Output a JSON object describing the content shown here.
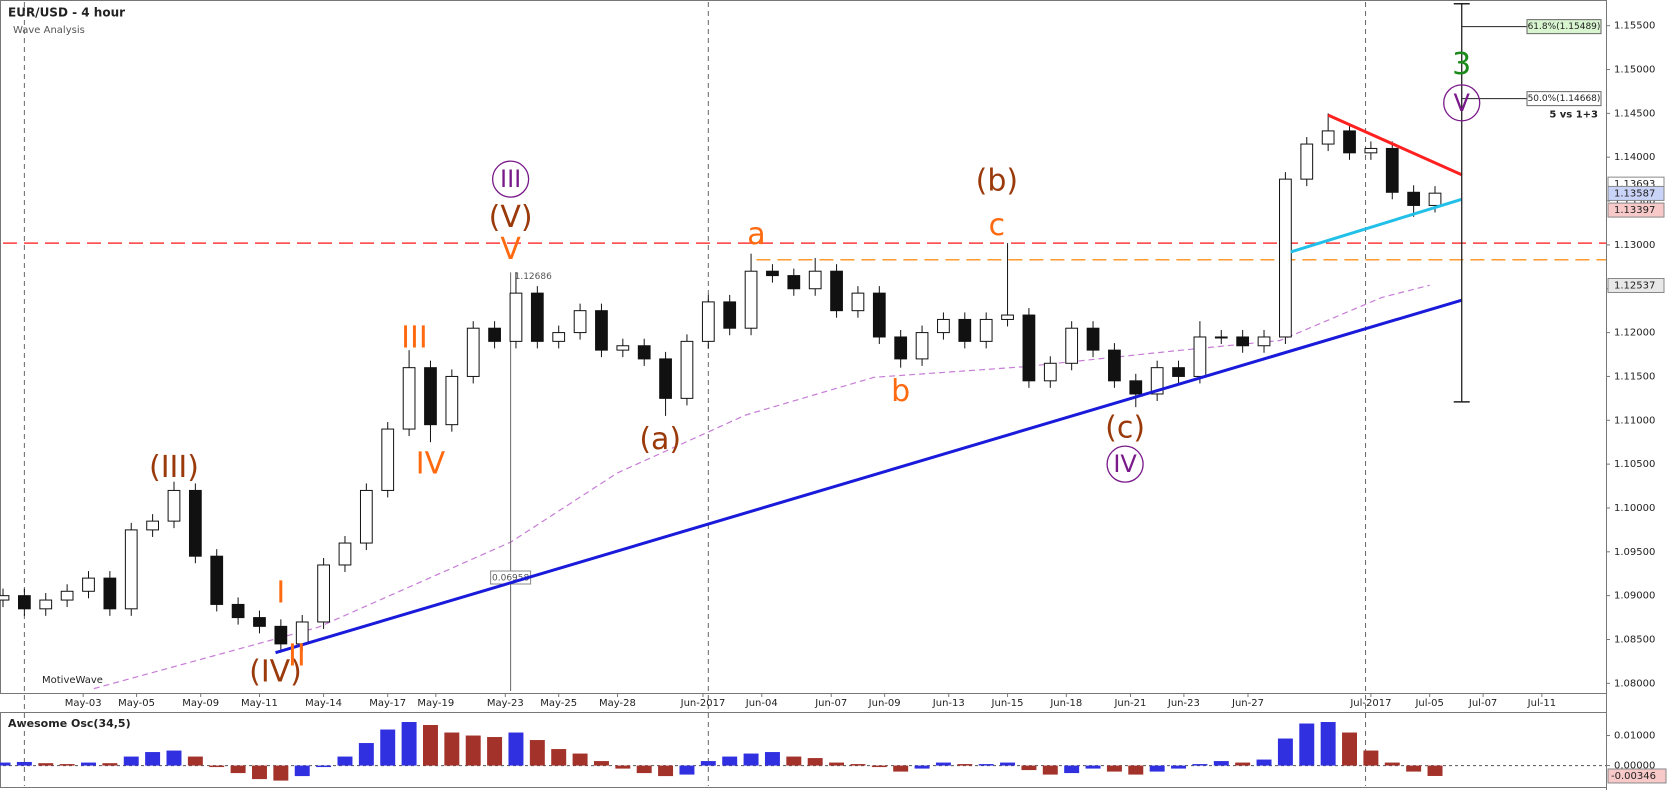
{
  "chart_data": {
    "type": "candlestick",
    "title": "EUR/USD - 4 hour",
    "subtitle": "Wave Analysis",
    "watermark": "MotiveWave",
    "xlim": [
      0,
      300
    ],
    "xticks": [
      {
        "value": 15,
        "label": "May-03"
      },
      {
        "value": 25,
        "label": "May-05"
      },
      {
        "value": 37,
        "label": "May-09"
      },
      {
        "value": 48,
        "label": "May-11"
      },
      {
        "value": 60,
        "label": "May-14"
      },
      {
        "value": 72,
        "label": "May-17"
      },
      {
        "value": 81,
        "label": "May-19"
      },
      {
        "value": 94,
        "label": "May-23"
      },
      {
        "value": 104,
        "label": "May-25"
      },
      {
        "value": 115,
        "label": "May-28"
      },
      {
        "value": 131,
        "label": "Jun-2017"
      },
      {
        "value": 142,
        "label": "Jun-04"
      },
      {
        "value": 155,
        "label": "Jun-07"
      },
      {
        "value": 165,
        "label": "Jun-09"
      },
      {
        "value": 177,
        "label": "Jun-13"
      },
      {
        "value": 188,
        "label": "Jun-15"
      },
      {
        "value": 199,
        "label": "Jun-18"
      },
      {
        "value": 211,
        "label": "Jun-21"
      },
      {
        "value": 221,
        "label": "Jun-23"
      },
      {
        "value": 233,
        "label": "Jun-27"
      },
      {
        "value": 256,
        "label": "Jul-2017"
      },
      {
        "value": 267,
        "label": "Jul-05"
      },
      {
        "value": 277,
        "label": "Jul-07"
      },
      {
        "value": 288,
        "label": "Jul-11"
      }
    ],
    "ylim": [
      1.0789,
      1.1577
    ],
    "yticks": [
      {
        "value": 1.08,
        "label": "1.08000"
      },
      {
        "value": 1.085,
        "label": "1.08500"
      },
      {
        "value": 1.09,
        "label": "1.09000"
      },
      {
        "value": 1.095,
        "label": "1.09500"
      },
      {
        "value": 1.1,
        "label": "1.10000"
      },
      {
        "value": 1.105,
        "label": "1.10500"
      },
      {
        "value": 1.11,
        "label": "1.11000"
      },
      {
        "value": 1.115,
        "label": "1.11500"
      },
      {
        "value": 1.12,
        "label": "1.12000"
      },
      {
        "value": 1.125,
        "label": "1.12500"
      },
      {
        "value": 1.13,
        "label": "1.13000"
      },
      {
        "value": 1.135,
        "label": "1.13500"
      },
      {
        "value": 1.14,
        "label": "1.14000"
      },
      {
        "value": 1.145,
        "label": "1.14500"
      },
      {
        "value": 1.15,
        "label": "1.15000"
      },
      {
        "value": 1.155,
        "label": "1.15500"
      }
    ],
    "x": [
      0,
      4,
      8,
      12,
      16,
      20,
      24,
      28,
      32,
      36,
      40,
      44,
      48,
      52,
      56,
      60,
      64,
      68,
      72,
      76,
      80,
      84,
      88,
      92,
      96,
      100,
      104,
      108,
      112,
      116,
      120,
      124,
      128,
      132,
      136,
      140,
      144,
      148,
      152,
      156,
      160,
      164,
      168,
      172,
      176,
      180,
      184,
      188,
      192,
      196,
      200,
      204,
      208,
      212,
      216,
      220,
      224,
      228,
      232,
      236,
      240,
      244,
      248,
      252,
      256,
      260,
      264,
      268
    ],
    "open": [
      1.0895,
      1.09,
      1.0885,
      1.0895,
      1.0905,
      1.092,
      1.0885,
      1.0975,
      1.0985,
      1.102,
      1.0945,
      1.089,
      1.0875,
      1.0865,
      1.0845,
      1.087,
      1.0935,
      1.096,
      1.102,
      1.109,
      1.116,
      1.1095,
      1.115,
      1.1205,
      1.119,
      1.1245,
      1.119,
      1.12,
      1.1225,
      1.118,
      1.1185,
      1.117,
      1.1125,
      1.119,
      1.1235,
      1.1205,
      1.127,
      1.1265,
      1.125,
      1.127,
      1.1225,
      1.1245,
      1.1195,
      1.117,
      1.12,
      1.1215,
      1.119,
      1.1215,
      1.122,
      1.1145,
      1.1165,
      1.1205,
      1.118,
      1.1145,
      1.113,
      1.116,
      1.115,
      1.1195,
      1.1195,
      1.1185,
      1.1195,
      1.1375,
      1.1415,
      1.143,
      1.1405,
      1.141,
      1.136,
      1.1345
    ],
    "high": [
      1.0908,
      1.0908,
      1.0903,
      1.0913,
      1.0928,
      1.0928,
      1.0983,
      1.0993,
      1.103,
      1.1028,
      1.0953,
      1.0898,
      1.0883,
      1.0873,
      1.0878,
      1.0943,
      1.0968,
      1.1028,
      1.1098,
      1.118,
      1.1168,
      1.1158,
      1.1213,
      1.1213,
      1.1269,
      1.1253,
      1.1208,
      1.1233,
      1.1233,
      1.1193,
      1.1193,
      1.1178,
      1.1198,
      1.1243,
      1.1243,
      1.129,
      1.1278,
      1.1273,
      1.1285,
      1.1278,
      1.1253,
      1.1253,
      1.1203,
      1.1208,
      1.1223,
      1.1223,
      1.1223,
      1.1302,
      1.1228,
      1.1173,
      1.1213,
      1.1213,
      1.1188,
      1.1153,
      1.1168,
      1.1168,
      1.1213,
      1.1203,
      1.1203,
      1.1203,
      1.1383,
      1.1423,
      1.145,
      1.1438,
      1.1418,
      1.1418,
      1.1368,
      1.1367
    ],
    "low": [
      1.0887,
      1.0877,
      1.0877,
      1.0887,
      1.0897,
      1.0877,
      1.0877,
      1.0967,
      1.0977,
      1.0937,
      1.0882,
      1.0867,
      1.0857,
      1.0835,
      1.0837,
      1.0862,
      1.0927,
      1.0952,
      1.1012,
      1.1082,
      1.1075,
      1.1087,
      1.1142,
      1.1182,
      1.1182,
      1.1182,
      1.1182,
      1.1192,
      1.1172,
      1.1172,
      1.1162,
      1.1105,
      1.1117,
      1.1182,
      1.1197,
      1.1197,
      1.1257,
      1.1242,
      1.1242,
      1.1217,
      1.1217,
      1.1187,
      1.116,
      1.1162,
      1.1192,
      1.1182,
      1.1182,
      1.1207,
      1.1137,
      1.1137,
      1.1157,
      1.1172,
      1.1137,
      1.1115,
      1.1122,
      1.1142,
      1.1142,
      1.1187,
      1.1177,
      1.1177,
      1.1187,
      1.1367,
      1.1407,
      1.1397,
      1.1397,
      1.1352,
      1.1332,
      1.1337
    ],
    "close": [
      1.09,
      1.0885,
      1.0895,
      1.0905,
      1.092,
      1.0885,
      1.0975,
      1.0985,
      1.102,
      1.0945,
      1.089,
      1.0875,
      1.0865,
      1.0845,
      1.087,
      1.0935,
      1.096,
      1.102,
      1.109,
      1.116,
      1.1095,
      1.115,
      1.1205,
      1.119,
      1.1245,
      1.119,
      1.12,
      1.1225,
      1.118,
      1.1185,
      1.117,
      1.1125,
      1.119,
      1.1235,
      1.1205,
      1.127,
      1.1265,
      1.125,
      1.127,
      1.1225,
      1.1245,
      1.1195,
      1.117,
      1.12,
      1.1215,
      1.119,
      1.1215,
      1.122,
      1.1145,
      1.1165,
      1.1205,
      1.118,
      1.1145,
      1.113,
      1.116,
      1.115,
      1.1195,
      1.1195,
      1.1185,
      1.1195,
      1.1375,
      1.1415,
      1.143,
      1.1405,
      1.141,
      1.136,
      1.1345,
      1.1359
    ],
    "up_color": "#ffffff",
    "down_color": "#111111",
    "separators": [
      4,
      132,
      255
    ],
    "moving_average": {
      "color": "#c77dd6",
      "x": [
        17,
        59,
        95,
        115,
        139,
        163,
        191,
        219,
        239,
        258,
        267
      ],
      "values": [
        1.0794,
        1.0864,
        1.0961,
        1.104,
        1.1106,
        1.1149,
        1.1161,
        1.1179,
        1.1191,
        1.124,
        1.1254
      ]
    },
    "trendlines": [
      {
        "color": "#1a1adb",
        "x": [
          51,
          273
        ],
        "values": [
          1.0835,
          1.1237
        ]
      },
      {
        "color": "#ff2020",
        "x": [
          248,
          273
        ],
        "values": [
          1.1448,
          1.138
        ]
      },
      {
        "color": "#22c0e8",
        "x": [
          241,
          273
        ],
        "values": [
          1.1292,
          1.1352
        ]
      }
    ],
    "levels": [
      {
        "color": "#ff3b3b",
        "value": 1.1302
      },
      {
        "color": "#ff9a2e",
        "value": 1.1283,
        "x": 141
      }
    ],
    "fib_line": {
      "x": 273,
      "values": [
        1.1575,
        1.1121
      ]
    },
    "fib_labels": [
      {
        "value": 1.15489,
        "label": "61.8%(1.15489)",
        "color": "#d8f5d0"
      },
      {
        "value": 1.14668,
        "label": "50.0%(1.14668)",
        "color": "#ffffff"
      }
    ],
    "note": "5 vs 1+3",
    "pivot_label": {
      "x": 95,
      "value": 1.12686
    },
    "measure": {
      "x": 95,
      "value": 0.06958
    },
    "price_tags": [
      {
        "value": 1.13693,
        "color": "#ffffff"
      },
      {
        "value": 1.13587,
        "color": "#c9d3f7"
      },
      {
        "value": 1.13397,
        "color": "#f7c9c9"
      },
      {
        "value": 1.12537,
        "color": "#e8e8e8"
      }
    ],
    "wave_labels": [
      {
        "text": "(III)",
        "x": 32,
        "y": 1.1046,
        "color": "#9a3a0a"
      },
      {
        "text": "(IV)",
        "x": 51,
        "y": 1.0813,
        "color": "#9a3a0a"
      },
      {
        "text": "(V)",
        "x": 95,
        "y": 1.1331,
        "color": "#9a3a0a"
      },
      {
        "text": "III",
        "x": 95,
        "y": 1.1375,
        "color": "#7a1a8a",
        "circle": true
      },
      {
        "text": "V",
        "x": 95,
        "y": 1.1295,
        "color": "#ff6a10"
      },
      {
        "text": "I",
        "x": 52,
        "y": 1.0903,
        "color": "#ff6a10"
      },
      {
        "text": "II",
        "x": 55,
        "y": 1.0831,
        "color": "#ff6a10"
      },
      {
        "text": "III",
        "x": 77,
        "y": 1.1194,
        "color": "#ff6a10"
      },
      {
        "text": "IV",
        "x": 80,
        "y": 1.105,
        "color": "#ff6a10"
      },
      {
        "text": "(a)",
        "x": 123,
        "y": 1.1078,
        "color": "#9a3a0a"
      },
      {
        "text": "a",
        "x": 141,
        "y": 1.1312,
        "color": "#ff6a10"
      },
      {
        "text": "b",
        "x": 168,
        "y": 1.1133,
        "color": "#ff6a10"
      },
      {
        "text": "(b)",
        "x": 186,
        "y": 1.1373,
        "color": "#9a3a0a"
      },
      {
        "text": "c",
        "x": 186,
        "y": 1.1322,
        "color": "#ff6a10"
      },
      {
        "text": "(c)",
        "x": 210,
        "y": 1.1091,
        "color": "#9a3a0a"
      },
      {
        "text": "IV",
        "x": 210,
        "y": 1.105,
        "color": "#7a1a8a",
        "circle": true
      },
      {
        "text": "3",
        "x": 273,
        "y": 1.1506,
        "color": "#1a8a1a"
      },
      {
        "text": "V",
        "x": 273,
        "y": 1.1462,
        "color": "#7a1a8a",
        "circle": true
      }
    ],
    "oscillator": {
      "name": "Awesome Osc(34,5)",
      "ylim": [
        -0.0068,
        0.0175
      ],
      "yticks": [
        {
          "value": 0.01,
          "label": "0.01000"
        },
        {
          "value": 0,
          "label": "0.00000"
        }
      ],
      "last": {
        "value": -0.00346,
        "label": "-0.00346"
      },
      "up_color": "#3030e0",
      "down_color": "#a3322a",
      "values": [
        0.001,
        0.0012,
        0.0008,
        0.0005,
        0.001,
        0.0008,
        0.003,
        0.0045,
        0.005,
        0.003,
        -0.0005,
        -0.0025,
        -0.0045,
        -0.005,
        -0.0035,
        -0.0005,
        0.003,
        0.0075,
        0.012,
        0.0145,
        0.0135,
        0.011,
        0.01,
        0.0095,
        0.011,
        0.0085,
        0.0055,
        0.004,
        0.0015,
        -0.001,
        -0.0025,
        -0.0035,
        -0.003,
        0.0015,
        0.003,
        0.004,
        0.0045,
        0.003,
        0.0025,
        0.001,
        0.0005,
        -0.0005,
        -0.002,
        -0.001,
        0.001,
        0.0005,
        0.0005,
        0.001,
        -0.0015,
        -0.003,
        -0.0025,
        -0.001,
        -0.002,
        -0.003,
        -0.002,
        -0.001,
        0.0005,
        0.0015,
        0.001,
        0.002,
        0.009,
        0.014,
        0.0145,
        0.011,
        0.005,
        0.001,
        -0.002,
        -0.00346
      ]
    }
  }
}
